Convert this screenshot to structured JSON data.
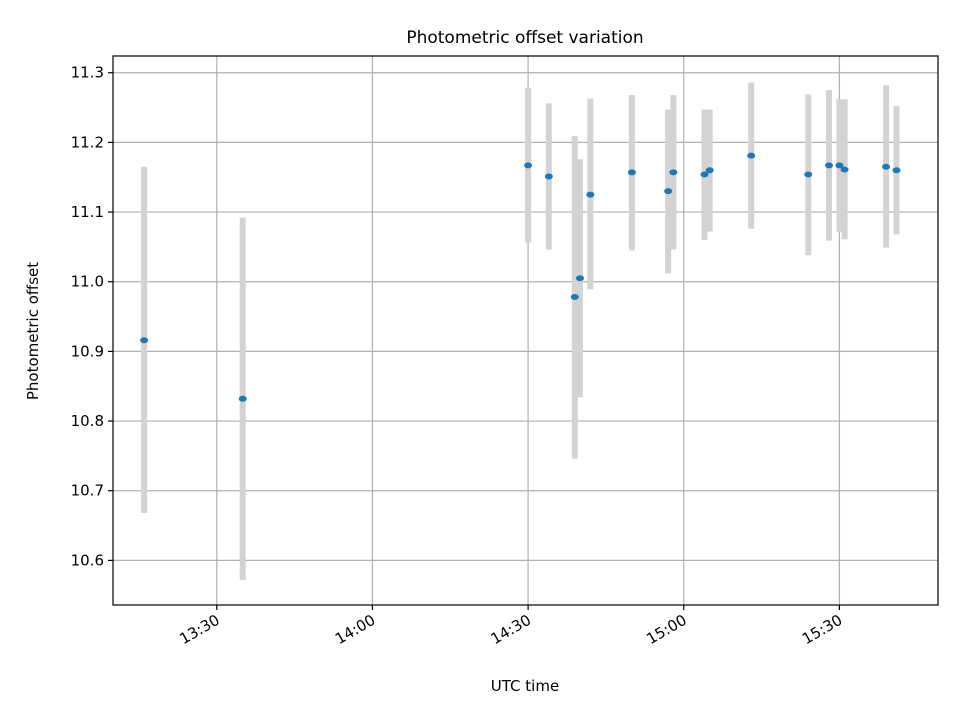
{
  "chart_data": {
    "type": "scatter",
    "title": "Photometric offset variation",
    "xlabel": "UTC time",
    "ylabel": "Photometric offset",
    "x_axis": {
      "type": "time",
      "range": [
        "13:10",
        "15:49"
      ],
      "ticks": [
        "13:30",
        "14:00",
        "14:30",
        "15:00",
        "15:30"
      ]
    },
    "y_axis": {
      "range": [
        10.536,
        11.324
      ],
      "ticks": [
        "10.6",
        "10.7",
        "10.8",
        "10.9",
        "11.0",
        "11.1",
        "11.2",
        "11.3"
      ]
    },
    "grid": true,
    "error_bars": true,
    "series": [
      {
        "marker_color": "#1f77b4",
        "errorbar_color": "#d3d3d3",
        "points": [
          {
            "time": "13:16",
            "value": 10.916,
            "low": 10.668,
            "high": 11.165
          },
          {
            "time": "13:35",
            "value": 10.832,
            "low": 10.572,
            "high": 11.092
          },
          {
            "time": "14:30",
            "value": 11.167,
            "low": 11.056,
            "high": 11.278
          },
          {
            "time": "14:34",
            "value": 11.151,
            "low": 11.046,
            "high": 11.256
          },
          {
            "time": "14:39",
            "value": 10.978,
            "low": 10.746,
            "high": 11.209
          },
          {
            "time": "14:40",
            "value": 11.005,
            "low": 10.834,
            "high": 11.176
          },
          {
            "time": "14:42",
            "value": 11.125,
            "low": 10.989,
            "high": 11.263
          },
          {
            "time": "14:50",
            "value": 11.157,
            "low": 11.045,
            "high": 11.268
          },
          {
            "time": "14:57",
            "value": 11.13,
            "low": 11.012,
            "high": 11.247
          },
          {
            "time": "14:58",
            "value": 11.157,
            "low": 11.046,
            "high": 11.268
          },
          {
            "time": "15:04",
            "value": 11.154,
            "low": 11.06,
            "high": 11.247
          },
          {
            "time": "15:05",
            "value": 11.16,
            "low": 11.072,
            "high": 11.247
          },
          {
            "time": "15:13",
            "value": 11.181,
            "low": 11.076,
            "high": 11.286
          },
          {
            "time": "15:24",
            "value": 11.154,
            "low": 11.038,
            "high": 11.269
          },
          {
            "time": "15:28",
            "value": 11.167,
            "low": 11.059,
            "high": 11.275
          },
          {
            "time": "15:30",
            "value": 11.167,
            "low": 11.072,
            "high": 11.262
          },
          {
            "time": "15:31",
            "value": 11.161,
            "low": 11.061,
            "high": 11.262
          },
          {
            "time": "15:39",
            "value": 11.165,
            "low": 11.049,
            "high": 11.282
          },
          {
            "time": "15:41",
            "value": 11.16,
            "low": 11.068,
            "high": 11.252
          }
        ]
      }
    ]
  }
}
